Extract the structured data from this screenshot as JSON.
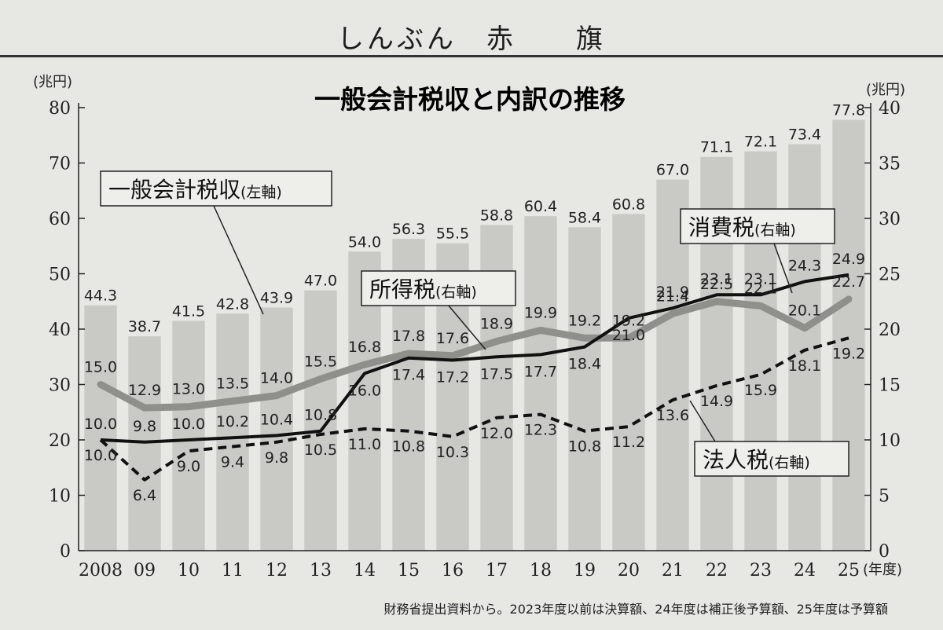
{
  "masthead": {
    "text": "しんぶん　赤　　旗"
  },
  "source_note": "財務省提出資料から。2023年度以前は決算額、24年度は補正後予算額、25年度は予算額",
  "callouts": {
    "general": {
      "name": "一般会計税収",
      "axis": "(左軸)"
    },
    "income": {
      "name": "所得税",
      "axis": "(右軸)"
    },
    "consumption": {
      "name": "消費税",
      "axis": "(右軸)"
    },
    "corporate": {
      "name": "法人税",
      "axis": "(右軸)"
    }
  },
  "colors": {
    "bar": "#c9c9c6",
    "income": "#8f8f8c",
    "consumption": "#111111",
    "corporate": "#111111",
    "background": "#e7e7e4"
  },
  "chart_data": {
    "type": "bar",
    "title": "一般会計税収と内訳の推移",
    "categories": [
      "2008",
      "09",
      "10",
      "11",
      "12",
      "13",
      "14",
      "15",
      "16",
      "17",
      "18",
      "19",
      "20",
      "21",
      "22",
      "23",
      "24",
      "25"
    ],
    "xlabel_unit": "(年度)",
    "y_left": {
      "label": "(兆円)",
      "range": [
        0,
        80
      ],
      "ticks": [
        0,
        10,
        20,
        30,
        40,
        50,
        60,
        70,
        80
      ]
    },
    "y_right": {
      "label": "(兆円)",
      "range": [
        0,
        40
      ],
      "ticks": [
        0,
        5,
        10,
        15,
        20,
        25,
        30,
        35,
        40
      ]
    },
    "series": [
      {
        "name": "一般会計税収",
        "axis": "left",
        "type": "bar",
        "values": [
          44.3,
          38.7,
          41.5,
          42.8,
          43.9,
          47.0,
          54.0,
          56.3,
          55.5,
          58.8,
          60.4,
          58.4,
          60.8,
          67.0,
          71.1,
          72.1,
          73.4,
          77.8
        ]
      },
      {
        "name": "所得税",
        "axis": "right",
        "type": "line",
        "style": "thick-gray",
        "values": [
          15.0,
          12.9,
          13.0,
          13.5,
          14.0,
          15.5,
          16.8,
          17.8,
          17.6,
          18.9,
          19.9,
          19.2,
          19.2,
          21.4,
          22.5,
          22.1,
          20.1,
          22.7
        ]
      },
      {
        "name": "消費税",
        "axis": "right",
        "type": "line",
        "style": "solid-black",
        "values": [
          10.0,
          9.8,
          10.0,
          10.2,
          10.4,
          10.8,
          16.0,
          17.4,
          17.2,
          17.5,
          17.7,
          18.4,
          21.0,
          21.9,
          23.1,
          23.1,
          24.3,
          24.9
        ]
      },
      {
        "name": "法人税",
        "axis": "right",
        "type": "line",
        "style": "dashed-black",
        "values": [
          10.0,
          6.4,
          9.0,
          9.4,
          9.8,
          10.5,
          11.0,
          10.8,
          10.3,
          12.0,
          12.3,
          10.8,
          11.2,
          13.6,
          14.9,
          15.9,
          18.1,
          19.2
        ]
      }
    ],
    "labels_text": {
      "bar": [
        "44.3",
        "38.7",
        "41.5",
        "42.8",
        "43.9",
        "47.0",
        "54.0",
        "56.3",
        "55.5",
        "58.8",
        "60.4",
        "58.4",
        "60.8",
        "67.0",
        "71.1",
        "72.1",
        "73.4",
        "77.8"
      ],
      "income": [
        "15.0",
        "12.9",
        "13.0",
        "13.5",
        "14.0",
        "15.5",
        "16.8",
        "17.8",
        "17.6",
        "18.9",
        "19.9",
        "19.2",
        "19.2",
        "21.4",
        "22.5",
        "22.1",
        "20.1",
        "22.7"
      ],
      "consumption": [
        "10.0",
        "9.8",
        "10.0",
        "10.2",
        "10.4",
        "10.8",
        "16.0",
        "17.4",
        "17.2",
        "17.5",
        "17.7",
        "18.4",
        "21.0",
        "21.9",
        "23.1",
        "23.1",
        "24.3",
        "24.9"
      ],
      "corporate": [
        "10.0",
        "6.4",
        "9.0",
        "9.4",
        "9.8",
        "10.5",
        "11.0",
        "10.8",
        "10.3",
        "12.0",
        "12.3",
        "10.8",
        "11.2",
        "13.6",
        "14.9",
        "15.9",
        "18.1",
        "19.2"
      ]
    },
    "legend": "callouts"
  }
}
